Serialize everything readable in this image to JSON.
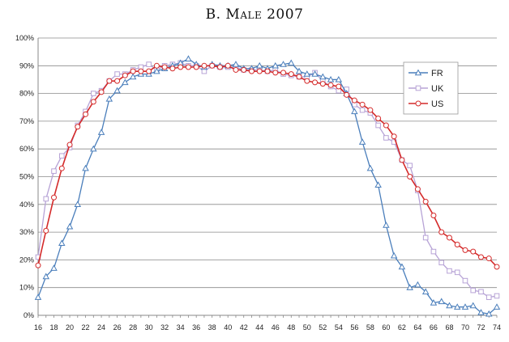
{
  "chart_data": {
    "type": "line",
    "title": "B. Male 2007",
    "xlabel": "",
    "ylabel": "",
    "x": [
      16,
      17,
      18,
      19,
      20,
      21,
      22,
      23,
      24,
      25,
      26,
      27,
      28,
      29,
      30,
      31,
      32,
      33,
      34,
      35,
      36,
      37,
      38,
      39,
      40,
      41,
      42,
      43,
      44,
      45,
      46,
      47,
      48,
      49,
      50,
      51,
      52,
      53,
      54,
      55,
      56,
      57,
      58,
      59,
      60,
      61,
      62,
      63,
      64,
      65,
      66,
      67,
      68,
      69,
      70,
      71,
      72,
      73,
      74
    ],
    "xticks": [
      16,
      18,
      20,
      22,
      24,
      26,
      28,
      30,
      32,
      34,
      36,
      38,
      40,
      42,
      44,
      46,
      48,
      50,
      52,
      54,
      56,
      58,
      60,
      62,
      64,
      66,
      68,
      70,
      72,
      74
    ],
    "xlim": [
      16,
      74
    ],
    "ylim": [
      0,
      100
    ],
    "yticks": [
      0,
      10,
      20,
      30,
      40,
      50,
      60,
      70,
      80,
      90,
      100
    ],
    "ytick_labels": [
      "0%",
      "10%",
      "20%",
      "30%",
      "40%",
      "50%",
      "60%",
      "70%",
      "80%",
      "90%",
      "100%"
    ],
    "grid": "horizontal",
    "legend_position": "right",
    "series": [
      {
        "name": "FR",
        "color": "#4a7ebb",
        "marker": "triangle",
        "values": [
          6.5,
          14,
          17,
          26,
          32,
          40,
          53,
          60,
          66,
          78,
          81,
          84,
          86,
          87,
          87,
          88,
          89,
          90,
          91,
          92.5,
          90.5,
          89.5,
          90.5,
          90,
          90,
          90.5,
          89,
          89,
          90,
          89,
          90,
          90.5,
          91,
          88,
          87,
          87,
          86,
          85,
          85,
          80,
          73.5,
          62.5,
          53,
          47,
          32.5,
          21.5,
          17.5,
          10,
          11,
          8.5,
          4.5,
          5,
          3.5,
          3,
          3,
          3.5,
          1,
          0.5,
          3
        ]
      },
      {
        "name": "UK",
        "color": "#b7a3d6",
        "marker": "square",
        "values": [
          21,
          42,
          52,
          57.5,
          60.5,
          68.5,
          73.5,
          80,
          81,
          84.5,
          87,
          87,
          88.5,
          89.5,
          90.5,
          88.5,
          90,
          90.5,
          91,
          90,
          90,
          88,
          90,
          89.5,
          89.5,
          89.5,
          88.5,
          88.5,
          88.5,
          88,
          88.5,
          87,
          86.5,
          86,
          86,
          87.5,
          84.5,
          82.5,
          81,
          81.5,
          76,
          74,
          73,
          68.5,
          64,
          62.5,
          56,
          54,
          45,
          28,
          23,
          19,
          16,
          15.5,
          12.5,
          9,
          8.5,
          6.5,
          7
        ]
      },
      {
        "name": "US",
        "color": "#d42a2a",
        "marker": "circle",
        "values": [
          18,
          30.5,
          42.5,
          53,
          61.5,
          68,
          72.5,
          77,
          80.5,
          84.5,
          84.5,
          86.5,
          88,
          88,
          88,
          90,
          89.5,
          89,
          89.5,
          89.5,
          89.5,
          90,
          90,
          89.5,
          90,
          88.5,
          88.5,
          88,
          88,
          88,
          87.5,
          87.5,
          87,
          86,
          84.5,
          84,
          83.5,
          83,
          82.5,
          79.5,
          77.5,
          76,
          74,
          71,
          68.5,
          64.5,
          56,
          50,
          45.5,
          41,
          36,
          30,
          28,
          25.5,
          23.5,
          23,
          21,
          20.5,
          17.5
        ]
      }
    ]
  }
}
